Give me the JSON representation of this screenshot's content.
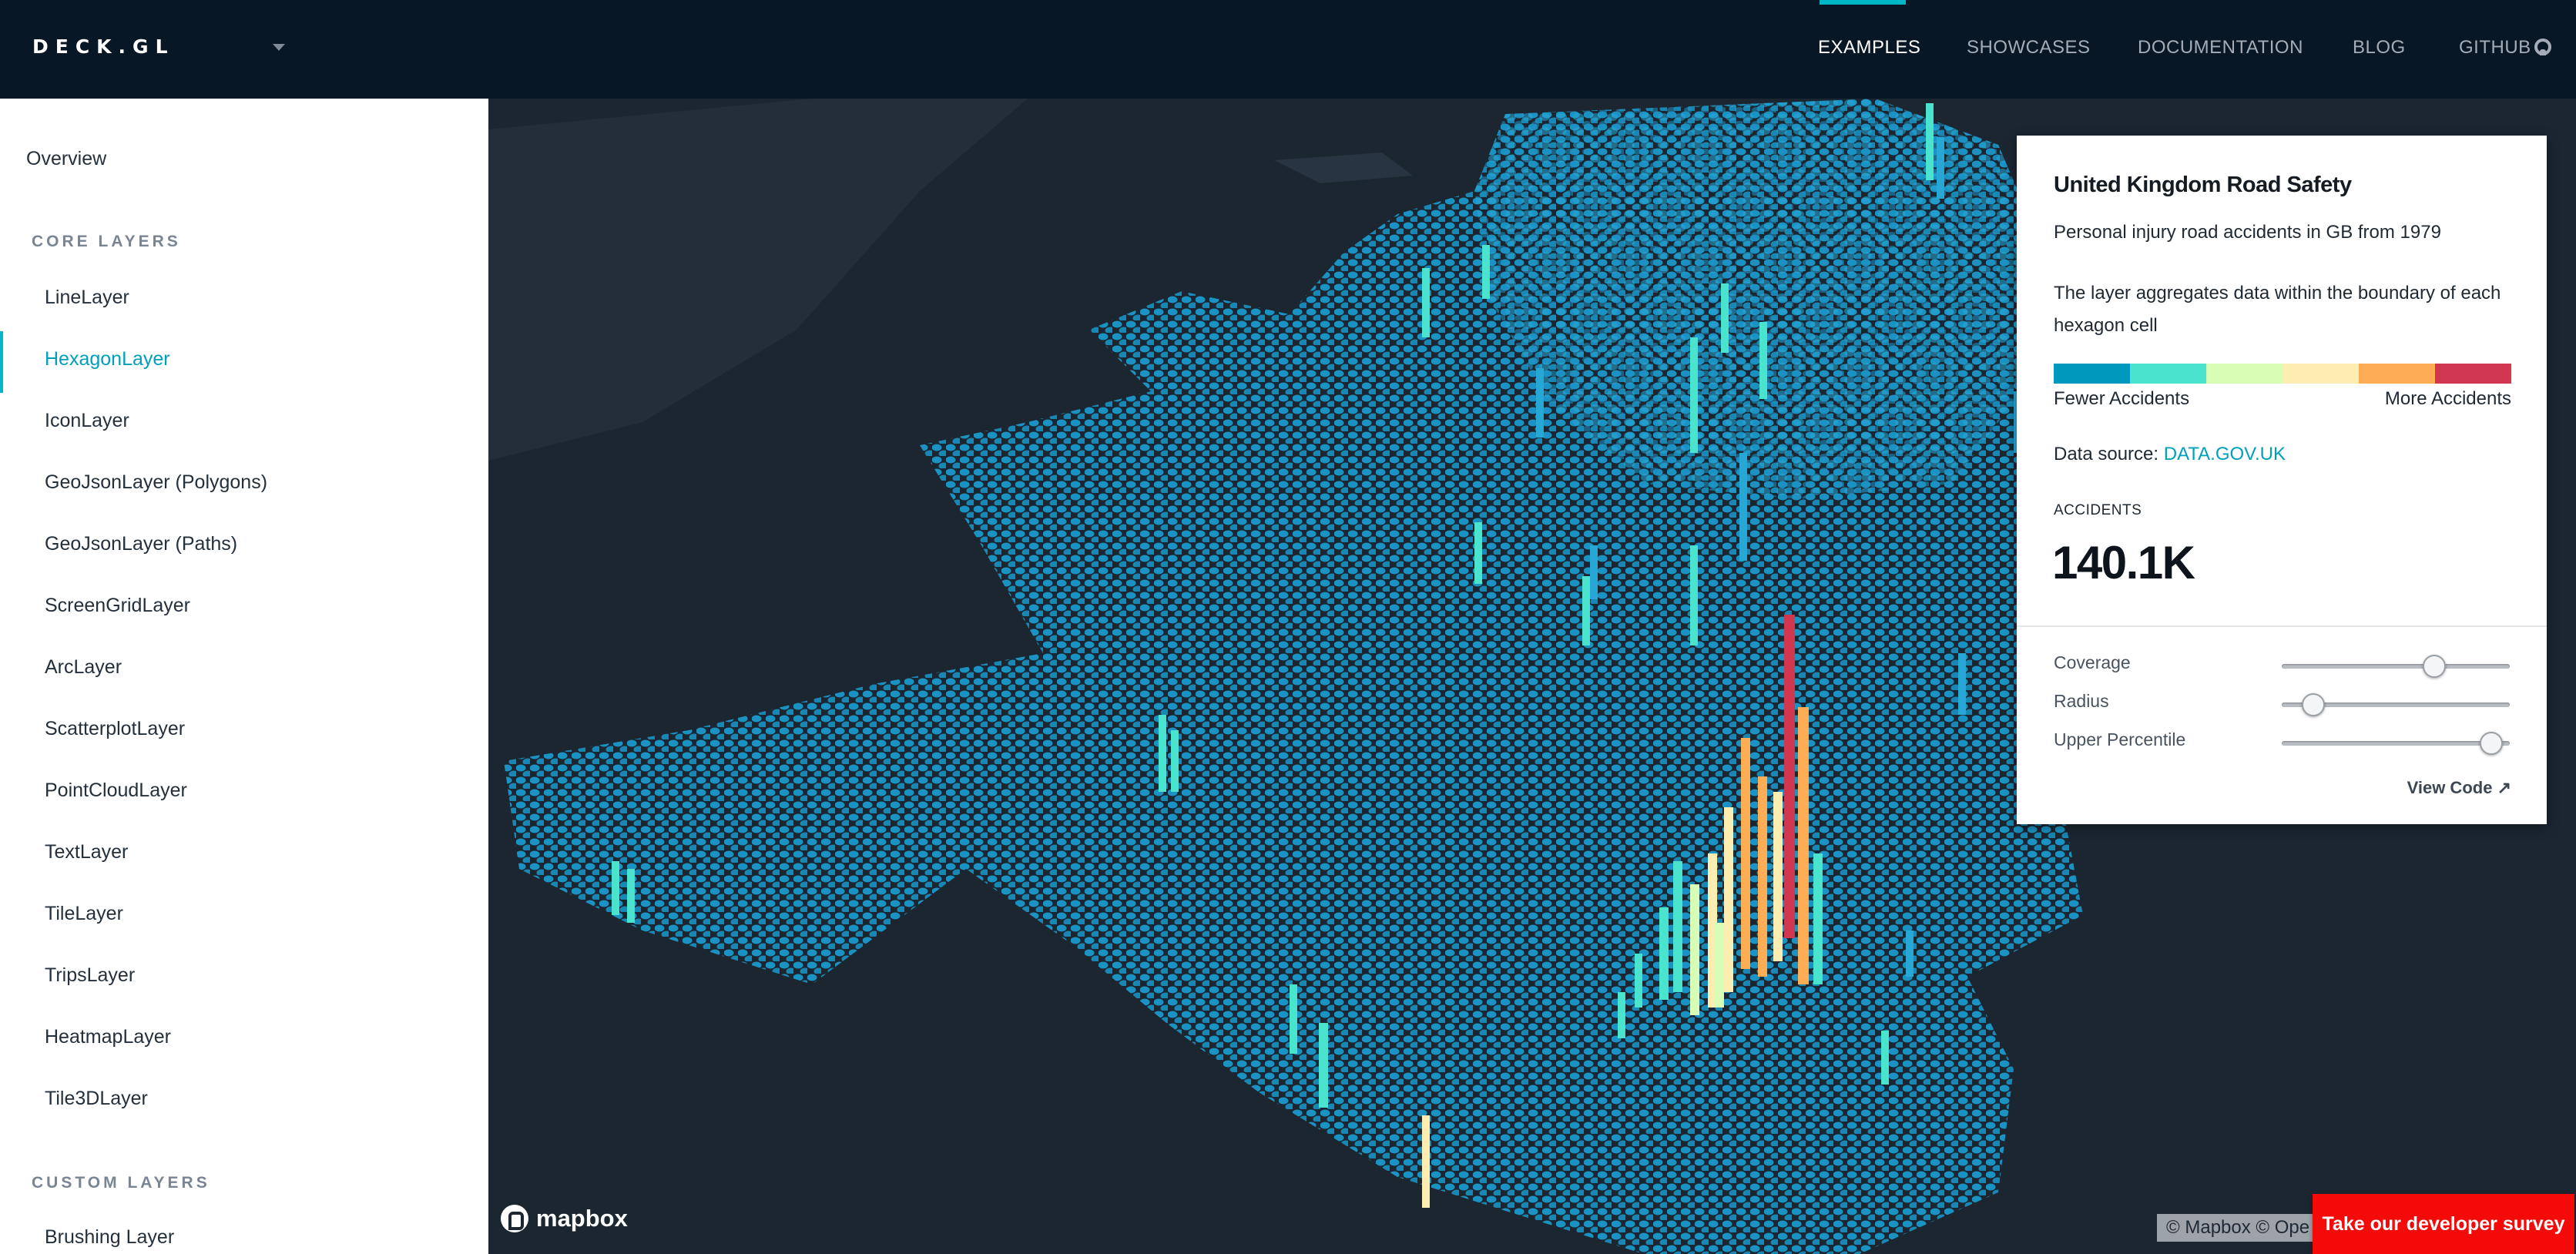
{
  "header": {
    "logo": "DECK.GL",
    "nav": [
      {
        "label": "EXAMPLES",
        "active": true
      },
      {
        "label": "SHOWCASES",
        "active": false
      },
      {
        "label": "DOCUMENTATION",
        "active": false
      },
      {
        "label": "BLOG",
        "active": false
      },
      {
        "label": "GITHUB",
        "active": false
      }
    ]
  },
  "sidebar": {
    "overview": "Overview",
    "core_heading": "CORE LAYERS",
    "core_items": [
      "LineLayer",
      "HexagonLayer",
      "IconLayer",
      "GeoJsonLayer (Polygons)",
      "GeoJsonLayer (Paths)",
      "ScreenGridLayer",
      "ArcLayer",
      "ScatterplotLayer",
      "PointCloudLayer",
      "TextLayer",
      "TileLayer",
      "TripsLayer",
      "HeatmapLayer",
      "Tile3DLayer"
    ],
    "active_item": "HexagonLayer",
    "custom_heading": "CUSTOM LAYERS",
    "custom_items": [
      "Brushing Layer"
    ]
  },
  "panel": {
    "title": "United Kingdom Road Safety",
    "subtitle": "Personal injury road accidents in GB from 1979",
    "description": "The layer aggregates data within the boundary of each hexagon cell",
    "legend_colors": [
      "#0198bd",
      "#49e3ce",
      "#d8feb5",
      "#feedb1",
      "#fead54",
      "#d1374e"
    ],
    "legend_low": "Fewer Accidents",
    "legend_high": "More Accidents",
    "datasource_label": "Data source: ",
    "datasource_link": "DATA.GOV.UK",
    "stat_label": "ACCIDENTS",
    "stat_value": "140.1K",
    "sliders": [
      {
        "label": "Coverage",
        "value": 0.67
      },
      {
        "label": "Radius",
        "value": 0.14
      },
      {
        "label": "Upper Percentile",
        "value": 0.92
      }
    ],
    "view_code": "View Code"
  },
  "map": {
    "attribution": "© Mapbox © Ope",
    "mapbox_logo": "mapbox",
    "survey_button": "Take our developer survey"
  }
}
